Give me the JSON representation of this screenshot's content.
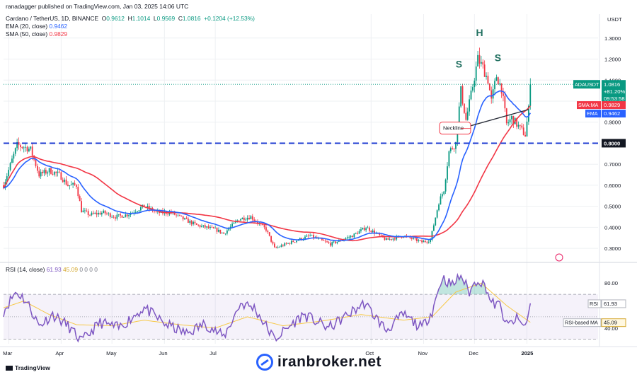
{
  "header": {
    "author": "ranadagger published on TradingView.com, Jan 03, 2025 14:06 UTC",
    "symbol_line": "Cardano / TetherUS, 1D, BINANCE",
    "ohlc": {
      "o_label": "O",
      "o": "0.9612",
      "h_label": "H",
      "h": "1.1014",
      "l_label": "L",
      "l": "0.9569",
      "c_label": "C",
      "c": "1.0816",
      "change": "+0.1204 (+12.53%)"
    },
    "ema_label": "EMA (20, close)",
    "ema_value": "0.9462",
    "sma_label": "SMA (50, close)",
    "sma_value": "0.9829",
    "rsi_label": "RSI (14, close)",
    "rsi_value": "61.93",
    "rsi_ma_value": "45.09",
    "rsi_extra": "0  0  0  0"
  },
  "chart_data": [
    {
      "type": "candlestick",
      "title": "Cardano / TetherUS, 1D, BINANCE",
      "currency": "USDT",
      "y_ticks": [
        "1.3000",
        "1.2000",
        "1.1000",
        "1.0000",
        "0.9000",
        "0.8000",
        "0.7000",
        "0.6000",
        "0.5000",
        "0.4000",
        "0.3000"
      ],
      "y_tick_values": [
        1.3,
        1.2,
        1.1,
        1.0,
        0.9,
        0.8,
        0.7,
        0.6,
        0.5,
        0.4,
        0.3
      ],
      "y_range": [
        0.25,
        1.38
      ],
      "x_ticks": [
        "Mar",
        "Apr",
        "May",
        "Jun",
        "Jul",
        "Oct",
        "Nov",
        "Dec",
        "2025"
      ],
      "x_tick_dates": [
        "2024-03-01",
        "2024-04-01",
        "2024-05-01",
        "2024-06-01",
        "2024-07-01",
        "2024-10-01",
        "2024-11-01",
        "2024-12-01",
        "2025-01-01"
      ],
      "x_range": [
        "2024-02-27",
        "2025-02-12"
      ],
      "anchors": [
        [
          "2024-02-27",
          0.6
        ],
        [
          "2024-03-03",
          0.72
        ],
        [
          "2024-03-06",
          0.79
        ],
        [
          "2024-03-11",
          0.78
        ],
        [
          "2024-03-14",
          0.77
        ],
        [
          "2024-03-19",
          0.65
        ],
        [
          "2024-03-25",
          0.67
        ],
        [
          "2024-03-31",
          0.65
        ],
        [
          "2024-04-05",
          0.6
        ],
        [
          "2024-04-10",
          0.6
        ],
        [
          "2024-04-13",
          0.48
        ],
        [
          "2024-04-18",
          0.46
        ],
        [
          "2024-04-26",
          0.47
        ],
        [
          "2024-05-03",
          0.45
        ],
        [
          "2024-05-10",
          0.46
        ],
        [
          "2024-05-20",
          0.5
        ],
        [
          "2024-05-28",
          0.47
        ],
        [
          "2024-06-05",
          0.47
        ],
        [
          "2024-06-12",
          0.44
        ],
        [
          "2024-06-20",
          0.41
        ],
        [
          "2024-07-01",
          0.39
        ],
        [
          "2024-07-06",
          0.37
        ],
        [
          "2024-07-15",
          0.44
        ],
        [
          "2024-07-22",
          0.45
        ],
        [
          "2024-07-31",
          0.39
        ],
        [
          "2024-08-05",
          0.3
        ],
        [
          "2024-08-15",
          0.33
        ],
        [
          "2024-08-26",
          0.36
        ],
        [
          "2024-09-07",
          0.32
        ],
        [
          "2024-09-20",
          0.36
        ],
        [
          "2024-09-28",
          0.4
        ],
        [
          "2024-10-10",
          0.34
        ],
        [
          "2024-10-20",
          0.36
        ],
        [
          "2024-10-31",
          0.33
        ],
        [
          "2024-11-05",
          0.34
        ],
        [
          "2024-11-10",
          0.52
        ],
        [
          "2024-11-13",
          0.58
        ],
        [
          "2024-11-16",
          0.76
        ],
        [
          "2024-11-20",
          0.8
        ],
        [
          "2024-11-23",
          1.05
        ],
        [
          "2024-11-26",
          0.91
        ],
        [
          "2024-11-29",
          1.03
        ],
        [
          "2024-12-03",
          1.2
        ],
        [
          "2024-12-06",
          1.16
        ],
        [
          "2024-12-09",
          1.1
        ],
        [
          "2024-12-11",
          1.0
        ],
        [
          "2024-12-14",
          1.12
        ],
        [
          "2024-12-17",
          1.06
        ],
        [
          "2024-12-20",
          0.89
        ],
        [
          "2024-12-23",
          0.92
        ],
        [
          "2024-12-27",
          0.88
        ],
        [
          "2024-12-31",
          0.84
        ],
        [
          "2025-01-02",
          0.96
        ],
        [
          "2025-01-03",
          1.08
        ]
      ],
      "last_price": {
        "label": "ADAUSDT",
        "value": "1.0816",
        "change": "+81.20%",
        "timer": "09:53:58"
      },
      "ema": {
        "label": "EMA",
        "value": "0.9462",
        "color": "#2962ff"
      },
      "sma": {
        "label": "SMA:MA",
        "value": "0.9829",
        "color": "#f23645"
      },
      "support": {
        "value": 0.8,
        "label": "0.8000"
      },
      "neckline": {
        "label": "Neckline",
        "from": [
          "2024-11-23",
          0.87
        ],
        "to": [
          "2025-01-02",
          0.96
        ]
      },
      "pattern_labels": [
        {
          "text": "S",
          "date": "2024-11-22",
          "price": 1.16
        },
        {
          "text": "H",
          "date": "2024-12-04",
          "price": 1.31
        },
        {
          "text": "S",
          "date": "2024-12-15",
          "price": 1.19
        }
      ]
    },
    {
      "type": "line",
      "title": "RSI (14, close)",
      "y_ticks": [
        "80.00",
        "40.00"
      ],
      "y_tick_values": [
        80,
        40
      ],
      "y_range": [
        26,
        94
      ],
      "bands": {
        "upper": 70,
        "middle": 50,
        "lower": 30
      },
      "anchors": [
        [
          "2024-02-27",
          55
        ],
        [
          "2024-03-05",
          72
        ],
        [
          "2024-03-09",
          68
        ],
        [
          "2024-03-13",
          60
        ],
        [
          "2024-03-19",
          42
        ],
        [
          "2024-03-27",
          52
        ],
        [
          "2024-04-05",
          42
        ],
        [
          "2024-04-13",
          28
        ],
        [
          "2024-04-24",
          45
        ],
        [
          "2024-05-05",
          40
        ],
        [
          "2024-05-20",
          58
        ],
        [
          "2024-06-01",
          44
        ],
        [
          "2024-06-14",
          35
        ],
        [
          "2024-06-25",
          44
        ],
        [
          "2024-07-06",
          32
        ],
        [
          "2024-07-16",
          62
        ],
        [
          "2024-07-24",
          58
        ],
        [
          "2024-08-05",
          30
        ],
        [
          "2024-08-22",
          52
        ],
        [
          "2024-09-06",
          40
        ],
        [
          "2024-09-27",
          62
        ],
        [
          "2024-10-10",
          38
        ],
        [
          "2024-10-20",
          52
        ],
        [
          "2024-10-31",
          40
        ],
        [
          "2024-11-06",
          55
        ],
        [
          "2024-11-12",
          85
        ],
        [
          "2024-11-18",
          78
        ],
        [
          "2024-11-23",
          87
        ],
        [
          "2024-11-28",
          72
        ],
        [
          "2024-12-03",
          84
        ],
        [
          "2024-12-08",
          76
        ],
        [
          "2024-12-11",
          62
        ],
        [
          "2024-12-16",
          60
        ],
        [
          "2024-12-20",
          42
        ],
        [
          "2024-12-26",
          48
        ],
        [
          "2024-12-31",
          41
        ],
        [
          "2025-01-02",
          55
        ],
        [
          "2025-01-03",
          61.93
        ]
      ],
      "ma_anchors": [
        [
          "2024-02-27",
          58
        ],
        [
          "2024-03-10",
          64
        ],
        [
          "2024-03-25",
          52
        ],
        [
          "2024-04-10",
          43
        ],
        [
          "2024-05-01",
          42
        ],
        [
          "2024-05-20",
          47
        ],
        [
          "2024-06-10",
          43
        ],
        [
          "2024-07-01",
          40
        ],
        [
          "2024-07-20",
          50
        ],
        [
          "2024-08-10",
          42
        ],
        [
          "2024-09-01",
          46
        ],
        [
          "2024-09-25",
          52
        ],
        [
          "2024-10-20",
          47
        ],
        [
          "2024-11-06",
          50
        ],
        [
          "2024-11-20",
          72
        ],
        [
          "2024-12-05",
          80
        ],
        [
          "2024-12-20",
          60
        ],
        [
          "2025-01-03",
          45.09
        ]
      ],
      "rsi_tag": {
        "label": "RSI",
        "value": "61.93"
      },
      "ma_tag": {
        "label": "RSI-based MA",
        "value": "45.09"
      }
    }
  ],
  "colors": {
    "up": "#089981",
    "down": "#f23645",
    "ema": "#2962ff",
    "sma": "#f23645",
    "rsi": "#7e57c2",
    "rsi_ma": "#f7c948",
    "support": "#1e3bd1",
    "grid": "#eef0f3"
  },
  "footer": {
    "tv_logo": "TradingView",
    "watermark": "iranbroker.net"
  }
}
